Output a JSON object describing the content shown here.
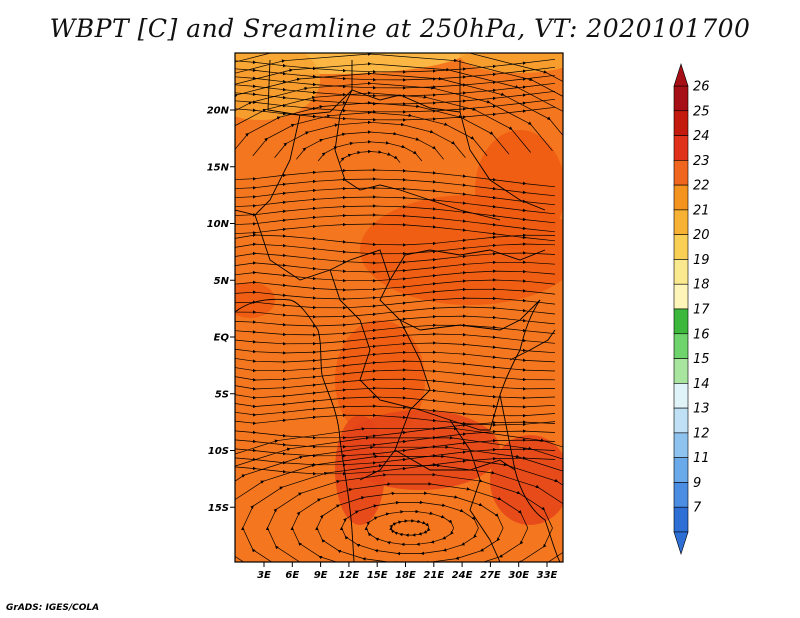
{
  "title": "WBPT [C] and Sreamline at 250hPa, VT: 2020101700",
  "credit": "GrADS: IGES/COLA",
  "map": {
    "lat_labels": [
      "20N",
      "15N",
      "10N",
      "5N",
      "EQ",
      "5S",
      "10S",
      "15S"
    ],
    "lon_labels": [
      "3E",
      "6E",
      "9E",
      "12E",
      "15E",
      "18E",
      "21E",
      "24E",
      "27E",
      "30E",
      "33E"
    ],
    "field_colors": {
      "base": "#f4761e",
      "warm": "#ee5a12",
      "hot": "#e4441a",
      "cool": "#f7a531",
      "coolest": "#fbc24a"
    }
  },
  "colorbar": {
    "labels": [
      "26",
      "25",
      "24",
      "23",
      "22",
      "21",
      "20",
      "19",
      "18",
      "17",
      "16",
      "15",
      "14",
      "13",
      "12",
      "11",
      "9",
      "7"
    ],
    "colors": [
      "#a50f15",
      "#c41a0d",
      "#e0321a",
      "#f0661f",
      "#f4931e",
      "#f7b234",
      "#f9cf55",
      "#fbe98f",
      "#fdf6b8",
      "#3db83d",
      "#6ed46b",
      "#a8e6a0",
      "#e0f3f8",
      "#bfe0f5",
      "#8ec3ef",
      "#6aa9ea",
      "#4a8de2",
      "#2e6fd6"
    ]
  }
}
